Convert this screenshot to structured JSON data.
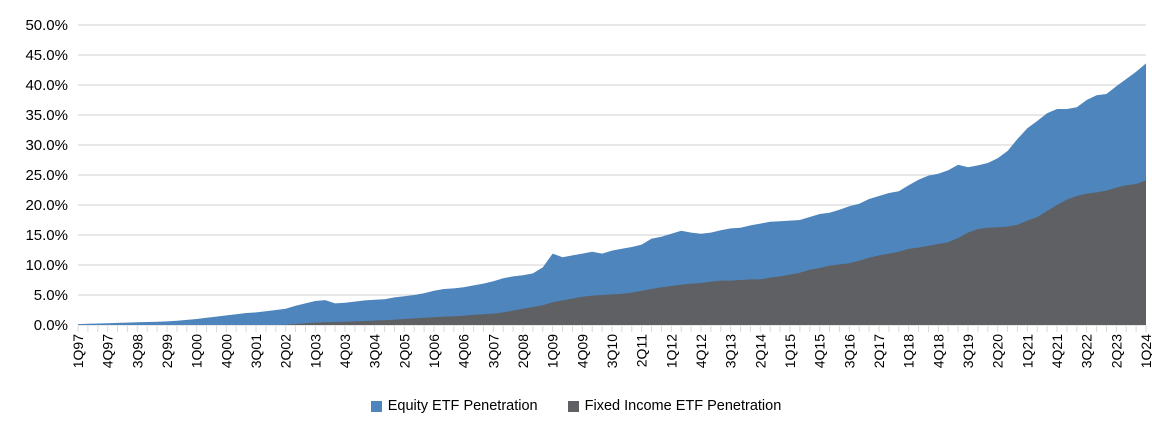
{
  "chart_data": {
    "type": "area",
    "title": "",
    "xlabel": "",
    "ylabel": "",
    "ylim": [
      0,
      50
    ],
    "grid": true,
    "legend_position": "bottom",
    "overlapping_series": true,
    "y_ticks": [
      "0.0%",
      "5.0%",
      "10.0%",
      "15.0%",
      "20.0%",
      "25.0%",
      "30.0%",
      "35.0%",
      "40.0%",
      "45.0%",
      "50.0%"
    ],
    "x_tick_labels": [
      "1Q97",
      "4Q97",
      "3Q98",
      "2Q99",
      "1Q00",
      "4Q00",
      "3Q01",
      "2Q02",
      "1Q03",
      "4Q03",
      "3Q04",
      "2Q05",
      "1Q06",
      "4Q06",
      "3Q07",
      "2Q08",
      "1Q09",
      "4Q09",
      "3Q10",
      "2Q11",
      "1Q12",
      "4Q12",
      "3Q13",
      "2Q14",
      "1Q15",
      "4Q15",
      "3Q16",
      "2Q17",
      "1Q18",
      "4Q18",
      "3Q19",
      "2Q20",
      "1Q21",
      "4Q21",
      "3Q22",
      "2Q23",
      "1Q24"
    ],
    "quarters_per_tick": 3,
    "series": [
      {
        "name": "Equity ETF Penetration",
        "color": "#4E85BD",
        "values": [
          0.15,
          0.2,
          0.25,
          0.3,
          0.35,
          0.4,
          0.45,
          0.5,
          0.55,
          0.6,
          0.7,
          0.85,
          1.0,
          1.2,
          1.4,
          1.6,
          1.8,
          2.0,
          2.1,
          2.3,
          2.5,
          2.7,
          3.2,
          3.6,
          4.0,
          4.15,
          3.6,
          3.7,
          3.9,
          4.1,
          4.2,
          4.3,
          4.6,
          4.8,
          5.0,
          5.3,
          5.7,
          6.0,
          6.1,
          6.3,
          6.6,
          6.9,
          7.3,
          7.8,
          8.1,
          8.3,
          8.6,
          9.6,
          11.9,
          11.3,
          11.6,
          11.9,
          12.2,
          11.9,
          12.4,
          12.7,
          13.0,
          13.4,
          14.4,
          14.7,
          15.2,
          15.7,
          15.4,
          15.2,
          15.4,
          15.8,
          16.1,
          16.2,
          16.6,
          16.9,
          17.2,
          17.3,
          17.4,
          17.5,
          18.0,
          18.5,
          18.7,
          19.2,
          19.8,
          20.2,
          21.0,
          21.5,
          22.0,
          22.3,
          23.3,
          24.2,
          24.9,
          25.2,
          25.8,
          26.7,
          26.3,
          26.6,
          27.0,
          27.8,
          29.0,
          31.0,
          32.8,
          34.0,
          35.3,
          36.0,
          36.0,
          36.3,
          37.5,
          38.3,
          38.5,
          39.8,
          41.0,
          42.2,
          43.6
        ]
      },
      {
        "name": "Fixed Income ETF Penetration",
        "color": "#5F6063",
        "values": [
          0,
          0,
          0,
          0,
          0,
          0,
          0,
          0,
          0,
          0,
          0,
          0,
          0,
          0,
          0,
          0,
          0,
          0,
          0,
          0,
          0,
          0.05,
          0.15,
          0.3,
          0.4,
          0.45,
          0.5,
          0.55,
          0.6,
          0.65,
          0.75,
          0.8,
          0.9,
          1.0,
          1.1,
          1.2,
          1.3,
          1.4,
          1.45,
          1.55,
          1.7,
          1.8,
          1.9,
          2.1,
          2.4,
          2.7,
          3.0,
          3.3,
          3.8,
          4.1,
          4.4,
          4.7,
          4.9,
          5.0,
          5.1,
          5.2,
          5.4,
          5.7,
          6.0,
          6.3,
          6.5,
          6.7,
          6.9,
          7.0,
          7.2,
          7.4,
          7.4,
          7.5,
          7.6,
          7.6,
          7.9,
          8.1,
          8.4,
          8.7,
          9.2,
          9.5,
          9.9,
          10.1,
          10.3,
          10.7,
          11.2,
          11.6,
          11.9,
          12.2,
          12.7,
          12.9,
          13.2,
          13.5,
          13.8,
          14.5,
          15.4,
          16.0,
          16.2,
          16.3,
          16.4,
          16.7,
          17.4,
          18.0,
          19.0,
          20.0,
          20.9,
          21.5,
          21.9,
          22.1,
          22.4,
          22.9,
          23.3,
          23.5,
          24.1
        ]
      }
    ]
  },
  "colors": {
    "gridline": "#D9D9D9",
    "axis_tick": "#D9D9D9",
    "axis_text": "#000000"
  }
}
